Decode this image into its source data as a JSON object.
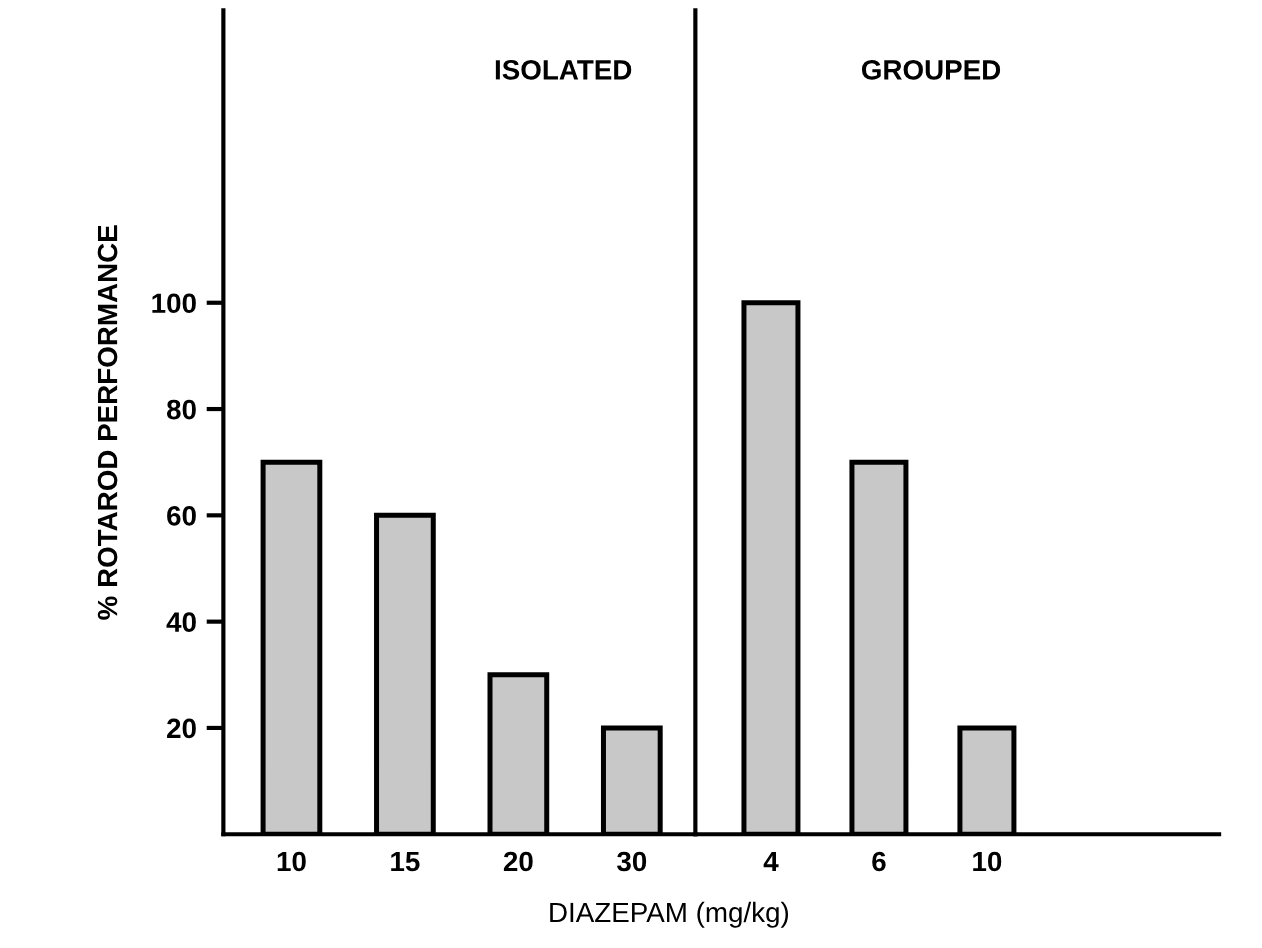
{
  "chart_data": [
    {
      "type": "bar",
      "ylabel": "% ROTAROD PERFORMANCE",
      "xlabel": "DIAZEPAM (mg/kg)",
      "annotations": [
        "ISOLATED"
      ],
      "categories": [
        "10",
        "15",
        "20",
        "30"
      ],
      "values": [
        70,
        60,
        30,
        20
      ],
      "color": "#c8c8c8",
      "ylim": [
        0,
        155
      ],
      "yticks": [
        20,
        40,
        60,
        80,
        100
      ],
      "grid": false,
      "legend": false
    },
    {
      "type": "bar",
      "annotations": [
        "GROUPED"
      ],
      "categories": [
        "4",
        "6",
        "10"
      ],
      "values": [
        100,
        70,
        20
      ],
      "color": "#c8c8c8",
      "ylim": [
        0,
        155
      ],
      "yticks": [
        20,
        40,
        60,
        80,
        100
      ],
      "tick_labels": "x",
      "grid": false,
      "legend": false
    }
  ]
}
